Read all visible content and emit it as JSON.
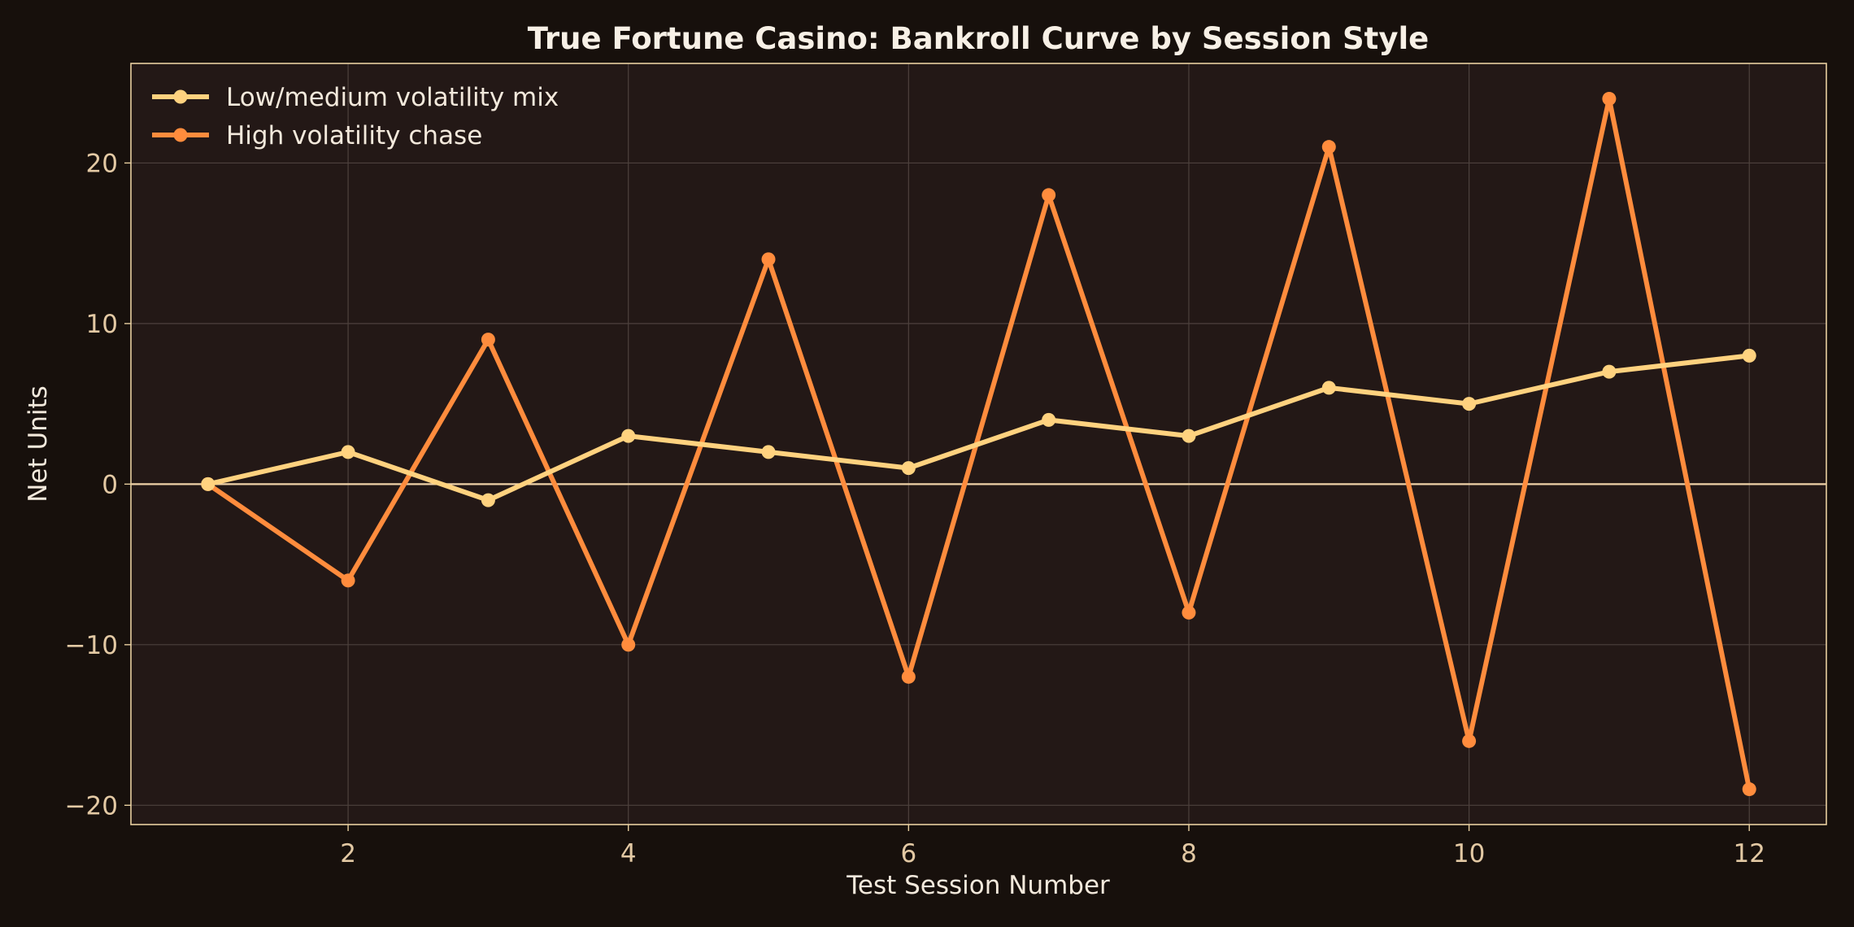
{
  "chart_data": {
    "type": "line",
    "title": "True Fortune Casino: Bankroll Curve by Session Style",
    "xlabel": "Test Session Number",
    "ylabel": "Net Units",
    "x": [
      1,
      2,
      3,
      4,
      5,
      6,
      7,
      8,
      9,
      10,
      11,
      12
    ],
    "xlim": [
      0.45,
      12.55
    ],
    "ylim": [
      -21.2,
      26.2
    ],
    "x_ticks": [
      2,
      4,
      6,
      8,
      10,
      12
    ],
    "x_tick_labels": [
      "2",
      "4",
      "6",
      "8",
      "10",
      "12"
    ],
    "y_ticks": [
      -20,
      -10,
      0,
      10,
      20
    ],
    "y_tick_labels": [
      "−20",
      "−10",
      "0",
      "10",
      "20"
    ],
    "grid": true,
    "zero_line": true,
    "legend_position": "top-left",
    "series": [
      {
        "name": "Low/medium volatility mix",
        "color": "#ffd27f",
        "values": [
          0,
          2,
          -1,
          3,
          2,
          1,
          4,
          3,
          6,
          5,
          7,
          8
        ]
      },
      {
        "name": "High volatility chase",
        "color": "#ff8c3d",
        "values": [
          0,
          -6,
          9,
          -10,
          14,
          -12,
          18,
          -8,
          21,
          -16,
          24,
          -19
        ]
      }
    ],
    "colors": {
      "background": "#17100c",
      "plot_background": "#231816",
      "frame": "#e8cfa0",
      "grid": "#4d413d",
      "zero_line": "#f0d2a8"
    }
  }
}
